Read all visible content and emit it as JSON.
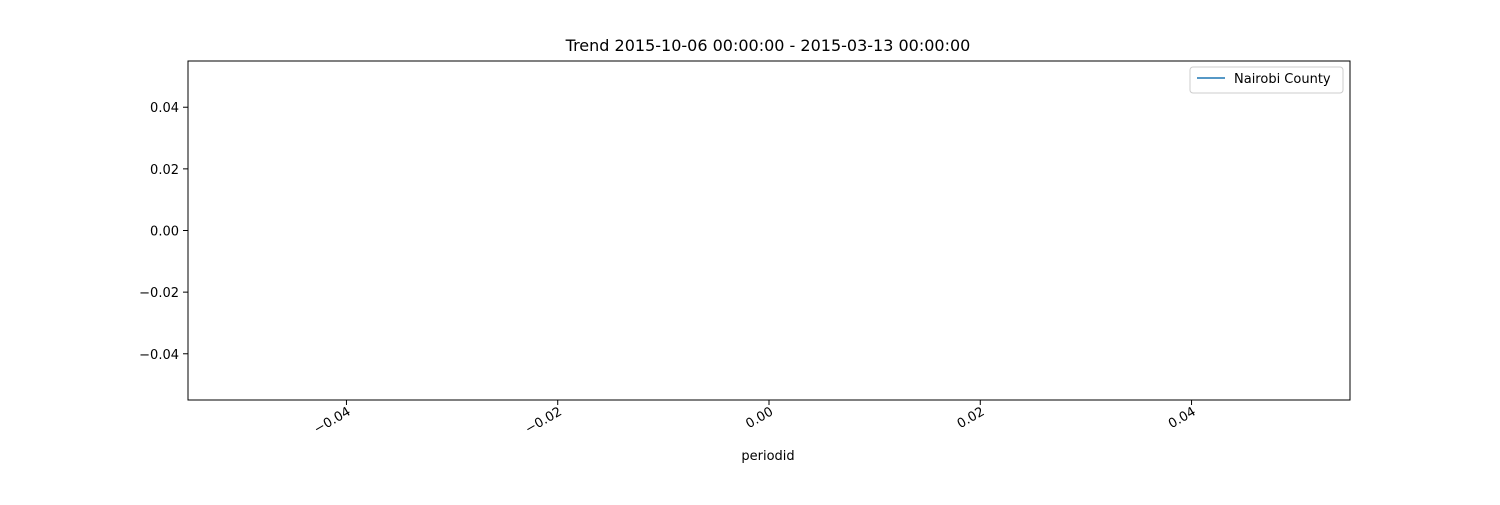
{
  "chart_data": {
    "type": "line",
    "title": "Trend 2015-10-06 00:00:00 - 2015-03-13 00:00:00",
    "xlabel": "periodid",
    "ylabel": "",
    "xlim": [
      -0.055,
      0.055
    ],
    "ylim": [
      -0.055,
      0.055
    ],
    "x_ticks": [
      -0.04,
      -0.02,
      0.0,
      0.02,
      0.04
    ],
    "x_tick_labels": [
      "−0.04",
      "−0.02",
      "0.00",
      "0.02",
      "0.04"
    ],
    "y_ticks": [
      0.04,
      0.02,
      0.0,
      -0.02,
      -0.04
    ],
    "y_tick_labels": [
      "0.04",
      "0.02",
      "0.00",
      "−0.02",
      "−0.04"
    ],
    "grid": false,
    "legend_position": "top-right",
    "series": [
      {
        "name": "Nairobi County",
        "color": "#1f77b4",
        "x": [],
        "y": []
      }
    ]
  }
}
